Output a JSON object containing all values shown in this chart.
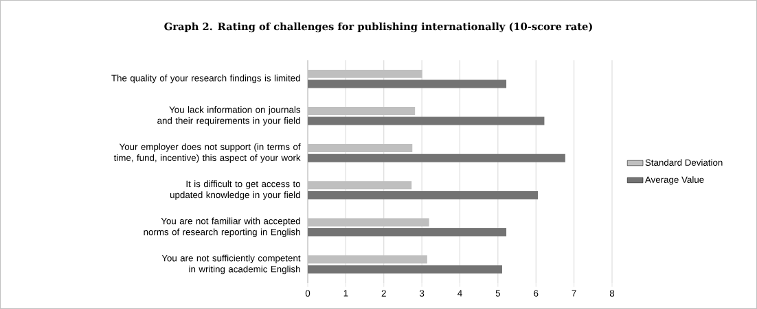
{
  "chart_data": {
    "type": "bar",
    "orientation": "horizontal",
    "title": "Graph 2. Rating of  challenges for publishing internationally (10-score rate)",
    "categories": [
      "The quality of your research findings is limited",
      "You lack information on journals and their requirements in your field",
      "Your employer does not support (in terms of time, fund, incentive)  this aspect of your work",
      "It is difficult to get access to updated knowledge in your field",
      "You are not familiar with accepted norms of research reporting in English",
      "You are not sufficiently competent in writing academic English"
    ],
    "series": [
      {
        "name": "Standard Deviation",
        "color": "#bfbfbf",
        "values": [
          3.01,
          2.82,
          2.75,
          2.73,
          3.19,
          3.14
        ]
      },
      {
        "name": "Average Value",
        "color": "#737373",
        "values": [
          5.22,
          6.22,
          6.77,
          6.05,
          5.22,
          5.11
        ]
      }
    ],
    "xlim": [
      0,
      8
    ],
    "xticks": [
      0,
      1,
      2,
      3,
      4,
      5,
      6,
      7,
      8
    ],
    "grid": "x",
    "legend": "right"
  }
}
